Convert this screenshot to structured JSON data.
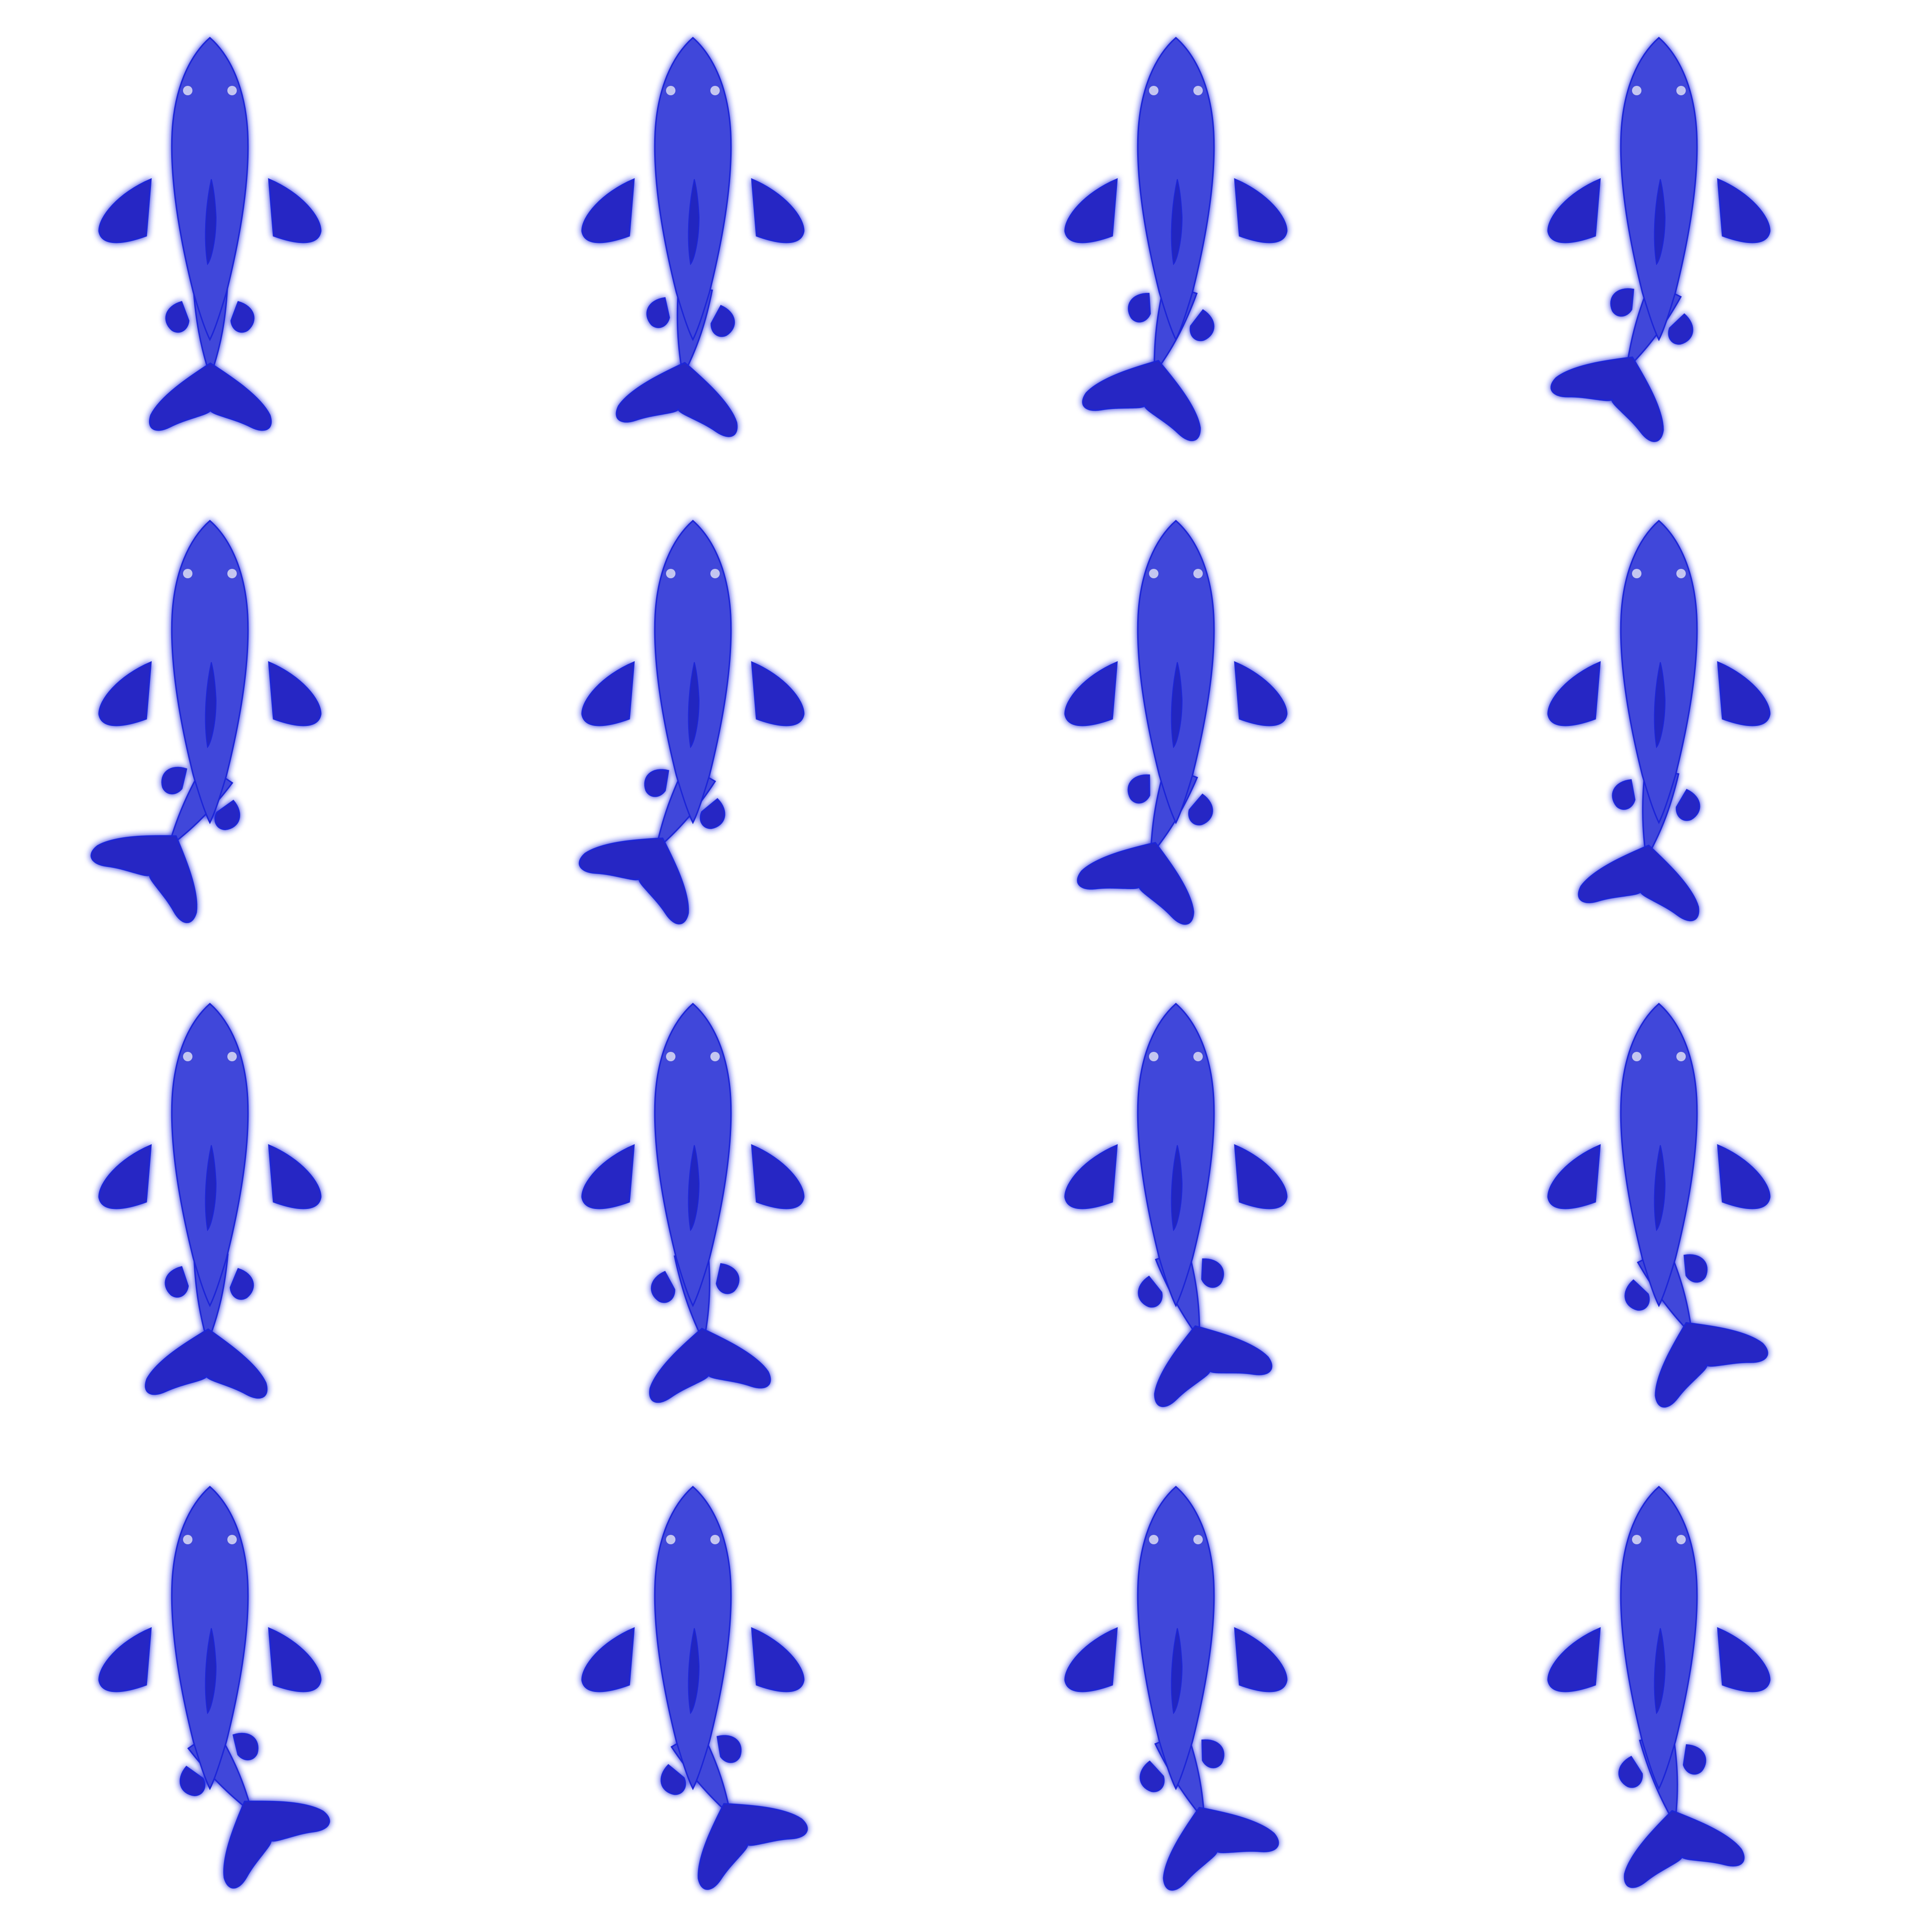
{
  "sprite_sheet": {
    "rows": 4,
    "columns": 4,
    "sprite_icon": "shark-swim-icon",
    "colors": {
      "background": "#ffffff",
      "glow": "#1a22e0",
      "body": "#4147da",
      "fin": "#2528c4",
      "belly_mark": "#2327c0",
      "outline": "#1e26d8",
      "eye": "#c4c6f0"
    },
    "frames": [
      {
        "row": 1,
        "col": 1,
        "tail_swing_deg": 0
      },
      {
        "row": 1,
        "col": 2,
        "tail_swing_deg": 8
      },
      {
        "row": 1,
        "col": 3,
        "tail_swing_deg": 17
      },
      {
        "row": 1,
        "col": 4,
        "tail_swing_deg": 26
      },
      {
        "row": 2,
        "col": 1,
        "tail_swing_deg": 34
      },
      {
        "row": 2,
        "col": 2,
        "tail_swing_deg": 30
      },
      {
        "row": 2,
        "col": 3,
        "tail_swing_deg": 20
      },
      {
        "row": 2,
        "col": 4,
        "tail_swing_deg": 10
      },
      {
        "row": 3,
        "col": 1,
        "tail_swing_deg": 2
      },
      {
        "row": 3,
        "col": 2,
        "tail_swing_deg": -8
      },
      {
        "row": 3,
        "col": 3,
        "tail_swing_deg": -18
      },
      {
        "row": 3,
        "col": 4,
        "tail_swing_deg": -26
      },
      {
        "row": 4,
        "col": 1,
        "tail_swing_deg": -34
      },
      {
        "row": 4,
        "col": 2,
        "tail_swing_deg": -30
      },
      {
        "row": 4,
        "col": 3,
        "tail_swing_deg": -22
      },
      {
        "row": 4,
        "col": 4,
        "tail_swing_deg": -12
      }
    ]
  }
}
